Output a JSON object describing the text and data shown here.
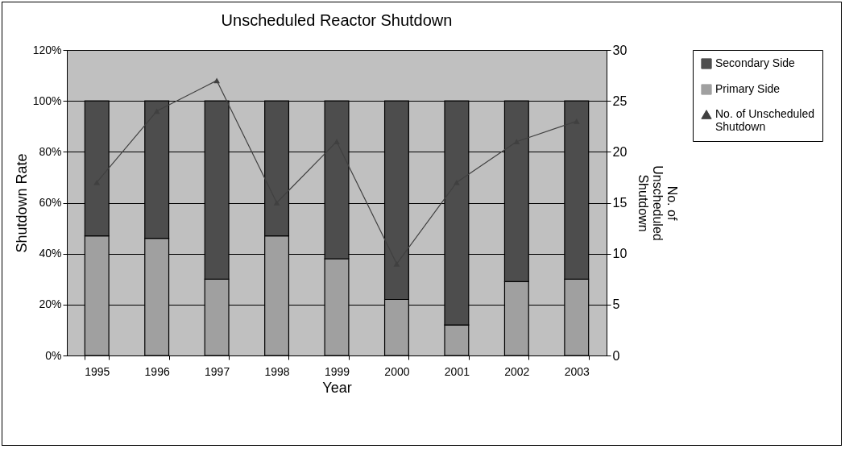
{
  "chart_data": {
    "type": "bar",
    "title": "Unscheduled Reactor Shutdown",
    "xlabel": "Year",
    "ylabel": "Shutdown Rate",
    "y2label": "No. of Unscheduled Shutdown",
    "categories": [
      "1995",
      "1996",
      "1997",
      "1998",
      "1999",
      "2000",
      "2001",
      "2002",
      "2003"
    ],
    "stacked": true,
    "series": [
      {
        "name": "Primary Side",
        "color": "#a0a0a0",
        "values": [
          47,
          46,
          30,
          47,
          38,
          22,
          12,
          29,
          30
        ]
      },
      {
        "name": "Secondary Side",
        "color": "#4d4d4d",
        "values": [
          53,
          54,
          70,
          53,
          62,
          78,
          88,
          71,
          70
        ]
      },
      {
        "name": "No. of Unscheduled Shutdown",
        "type": "line",
        "axis": "y2",
        "color": "#404040",
        "values": [
          17,
          24,
          27,
          15,
          21,
          9,
          17,
          21,
          23
        ]
      }
    ],
    "ylim": [
      0,
      120
    ],
    "yticks": [
      {
        "value": 0,
        "label": "0%"
      },
      {
        "value": 20,
        "label": "20%"
      },
      {
        "value": 40,
        "label": "40%"
      },
      {
        "value": 60,
        "label": "60%"
      },
      {
        "value": 80,
        "label": "80%"
      },
      {
        "value": 100,
        "label": "100%"
      },
      {
        "value": 120,
        "label": "120%"
      }
    ],
    "y2lim": [
      0,
      30
    ],
    "y2ticks": [
      0,
      5,
      10,
      15,
      20,
      25,
      30
    ],
    "grid": "y",
    "legend": "right",
    "marker": "triangle",
    "line_style": "solid"
  }
}
